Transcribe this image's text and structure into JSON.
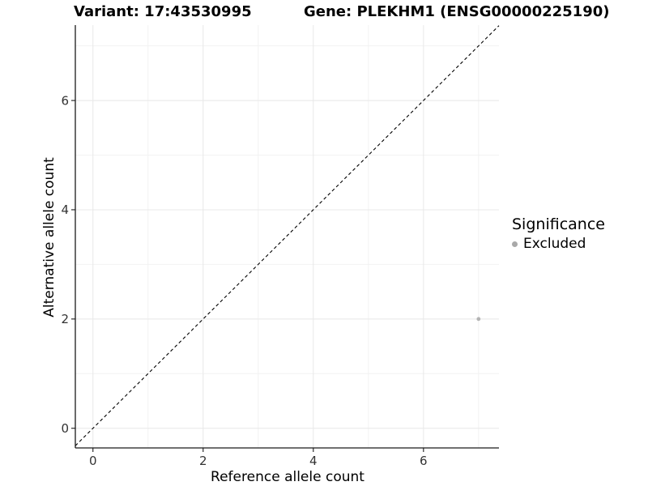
{
  "chart_data": {
    "type": "scatter",
    "title_variant": "Variant: 17:43530995",
    "title_gene": "Gene: PLEKHM1 (ENSG00000225190)",
    "xlabel": "Reference allele count",
    "ylabel": "Alternative allele count",
    "xlim": [
      -0.32,
      7.37
    ],
    "ylim": [
      -0.36,
      7.38
    ],
    "x_ticks": [
      0,
      2,
      4,
      6
    ],
    "y_ticks": [
      0,
      2,
      4,
      6
    ],
    "x_minor_grid": [
      1,
      3,
      5,
      7
    ],
    "y_minor_grid": [
      1,
      3,
      5,
      7
    ],
    "series": [
      {
        "name": "Excluded",
        "color": "#b4b4b4",
        "points": [
          {
            "x": 7,
            "y": 2
          }
        ]
      }
    ],
    "reference_line": {
      "kind": "identity y=x",
      "style": "dashed",
      "color": "#000000"
    },
    "grid": {
      "on": true,
      "major_color": "#e8e8e8",
      "minor_color": "#f2f2f2"
    },
    "axis_color": "#1a1a1a",
    "tick_label_color": "#333333",
    "legend": {
      "position": "right",
      "title": "Significance",
      "entries": [
        {
          "label": "Excluded",
          "color": "#a9a9a9"
        }
      ]
    }
  }
}
